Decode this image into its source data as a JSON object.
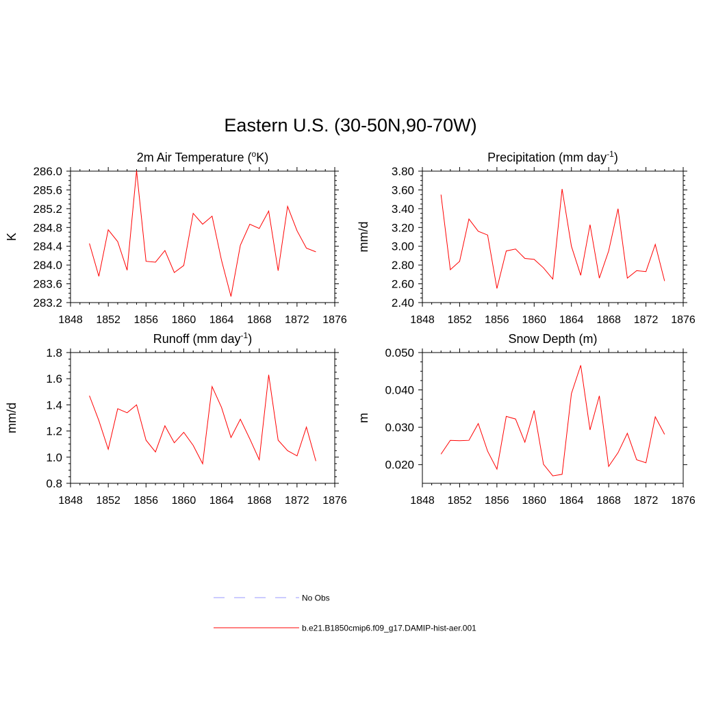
{
  "figure": {
    "title": "Eastern U.S. (30-50N,90-70W)"
  },
  "legend": [
    {
      "label": "No Obs",
      "color": "#9999ff",
      "dash": "dashed"
    },
    {
      "label": "b.e21.B1850cmip6.f09_g17.DAMIP-hist-aer.001",
      "color": "#ff0000",
      "dash": "solid"
    }
  ],
  "chart_data": [
    {
      "type": "line",
      "title": "2m Air Temperature (oK)",
      "title_parts": [
        "2m Air Temperature (",
        "o",
        "K)"
      ],
      "title_super_index": 1,
      "ylabel": "K",
      "xlim": [
        1848,
        1876
      ],
      "ylim": [
        283.2,
        286.0
      ],
      "xticks": [
        1848,
        1852,
        1856,
        1860,
        1864,
        1868,
        1872,
        1876
      ],
      "yticks": [
        283.2,
        283.6,
        284.0,
        284.4,
        284.8,
        285.2,
        285.6,
        286.0
      ],
      "ytick_decimals": 1,
      "series": [
        {
          "color": "#ff0000",
          "x": [
            1850,
            1851,
            1852,
            1853,
            1854,
            1855,
            1856,
            1857,
            1858,
            1859,
            1860,
            1861,
            1862,
            1863,
            1864,
            1865,
            1866,
            1867,
            1868,
            1869,
            1870,
            1871,
            1872,
            1873,
            1874
          ],
          "values": [
            284.46,
            283.76,
            284.75,
            284.5,
            283.89,
            286.01,
            284.08,
            284.06,
            284.31,
            283.84,
            283.99,
            285.1,
            284.87,
            285.04,
            284.1,
            283.33,
            284.42,
            284.87,
            284.78,
            285.15,
            283.88,
            285.25,
            284.73,
            284.36,
            284.28
          ]
        }
      ]
    },
    {
      "type": "line",
      "title": "Precipitation (mm day-1)",
      "title_parts": [
        "Precipitation (mm day",
        "-1",
        ")"
      ],
      "title_super_index": 1,
      "ylabel": "mm/d",
      "xlim": [
        1848,
        1876
      ],
      "ylim": [
        2.4,
        3.8
      ],
      "xticks": [
        1848,
        1852,
        1856,
        1860,
        1864,
        1868,
        1872,
        1876
      ],
      "yticks": [
        2.4,
        2.6,
        2.8,
        3.0,
        3.2,
        3.4,
        3.6,
        3.8
      ],
      "ytick_decimals": 2,
      "series": [
        {
          "color": "#ff0000",
          "x": [
            1850,
            1851,
            1852,
            1853,
            1854,
            1855,
            1856,
            1857,
            1858,
            1859,
            1860,
            1861,
            1862,
            1863,
            1864,
            1865,
            1866,
            1867,
            1868,
            1869,
            1870,
            1871,
            1872,
            1873,
            1874
          ],
          "values": [
            3.55,
            2.75,
            2.84,
            3.29,
            3.16,
            3.12,
            2.55,
            2.95,
            2.97,
            2.87,
            2.86,
            2.77,
            2.65,
            3.61,
            3.0,
            2.69,
            3.23,
            2.66,
            2.95,
            3.4,
            2.66,
            2.74,
            2.73,
            3.02,
            2.63
          ]
        }
      ]
    },
    {
      "type": "line",
      "title": "Runoff (mm day-1)",
      "title_parts": [
        "Runoff (mm day",
        "-1",
        ")"
      ],
      "title_super_index": 1,
      "ylabel": "mm/d",
      "xlim": [
        1848,
        1876
      ],
      "ylim": [
        0.8,
        1.8
      ],
      "xticks": [
        1848,
        1852,
        1856,
        1860,
        1864,
        1868,
        1872,
        1876
      ],
      "yticks": [
        0.8,
        1.0,
        1.2,
        1.4,
        1.6,
        1.8
      ],
      "ytick_decimals": 1,
      "series": [
        {
          "color": "#ff0000",
          "x": [
            1850,
            1851,
            1852,
            1853,
            1854,
            1855,
            1856,
            1857,
            1858,
            1859,
            1860,
            1861,
            1862,
            1863,
            1864,
            1865,
            1866,
            1867,
            1868,
            1869,
            1870,
            1871,
            1872,
            1873,
            1874
          ],
          "values": [
            1.47,
            1.28,
            1.06,
            1.37,
            1.34,
            1.4,
            1.13,
            1.04,
            1.24,
            1.11,
            1.19,
            1.09,
            0.95,
            1.54,
            1.38,
            1.15,
            1.29,
            1.14,
            0.98,
            1.63,
            1.13,
            1.05,
            1.01,
            1.23,
            0.97
          ]
        }
      ]
    },
    {
      "type": "line",
      "title": "Snow Depth (m)",
      "title_parts": [
        "Snow Depth (m)"
      ],
      "title_super_index": -1,
      "ylabel": "m",
      "xlim": [
        1848,
        1876
      ],
      "ylim": [
        0.015,
        0.05
      ],
      "xticks": [
        1848,
        1852,
        1856,
        1860,
        1864,
        1868,
        1872,
        1876
      ],
      "yticks": [
        0.02,
        0.03,
        0.04,
        0.05
      ],
      "ytick_decimals": 3,
      "series": [
        {
          "color": "#ff0000",
          "x": [
            1850,
            1851,
            1852,
            1853,
            1854,
            1855,
            1856,
            1857,
            1858,
            1859,
            1860,
            1861,
            1862,
            1863,
            1864,
            1865,
            1866,
            1867,
            1868,
            1869,
            1870,
            1871,
            1872,
            1873,
            1874
          ],
          "values": [
            0.0228,
            0.0265,
            0.0264,
            0.0265,
            0.031,
            0.0236,
            0.0188,
            0.0329,
            0.0322,
            0.026,
            0.0345,
            0.0201,
            0.017,
            0.0174,
            0.039,
            0.0466,
            0.0293,
            0.0384,
            0.0195,
            0.0232,
            0.0284,
            0.0213,
            0.0205,
            0.0328,
            0.0281
          ]
        }
      ]
    }
  ]
}
